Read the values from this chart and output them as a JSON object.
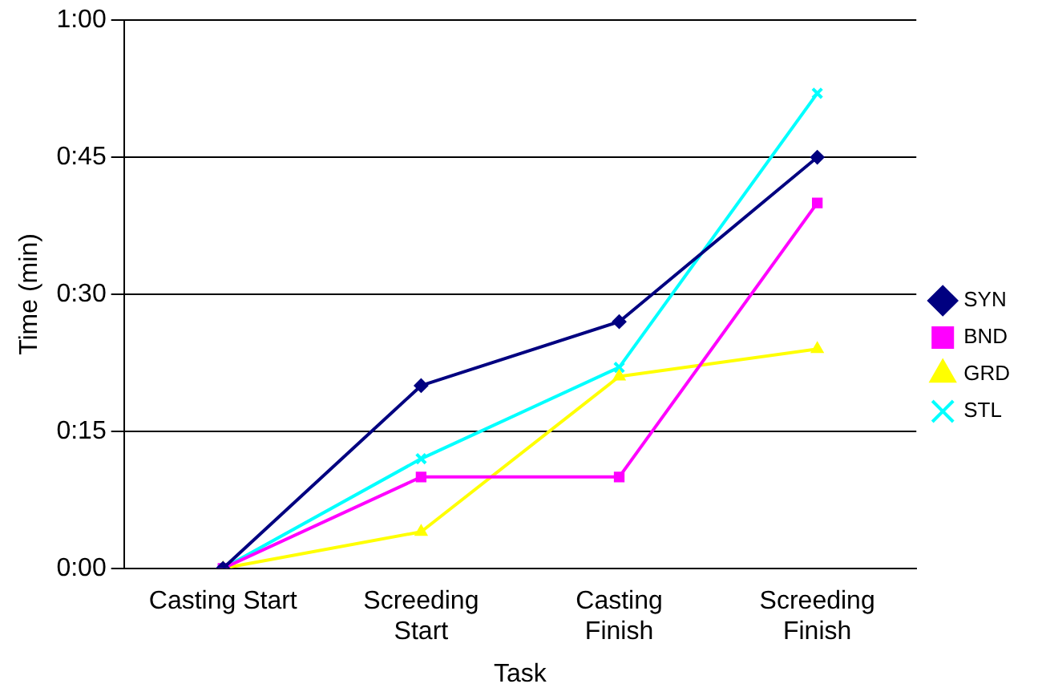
{
  "chart_data": {
    "type": "line",
    "xlabel": "Task",
    "ylabel": "Time (min)",
    "categories": [
      "Casting Start",
      "Screeding Start",
      "Casting Finish",
      "Screeding Finish"
    ],
    "series": [
      {
        "name": "SYN",
        "color": "#000080",
        "marker": "diamond",
        "values": [
          0,
          20,
          27,
          45
        ]
      },
      {
        "name": "BND",
        "color": "#ff00ff",
        "marker": "square",
        "values": [
          0,
          10,
          10,
          40
        ]
      },
      {
        "name": "GRD",
        "color": "#ffff00",
        "marker": "triangle",
        "values": [
          0,
          4,
          21,
          24
        ]
      },
      {
        "name": "STL",
        "color": "#00ffff",
        "marker": "cross",
        "values": [
          0,
          12,
          22,
          52
        ]
      }
    ],
    "ylim": [
      0,
      60
    ],
    "yticks": [
      {
        "value": 0,
        "label": "0:00"
      },
      {
        "value": 15,
        "label": "0:15"
      },
      {
        "value": 30,
        "label": "0:30"
      },
      {
        "value": 45,
        "label": "0:45"
      },
      {
        "value": 60,
        "label": "1:00"
      }
    ],
    "grid": "y",
    "legend": "right",
    "line_style": "solid"
  }
}
